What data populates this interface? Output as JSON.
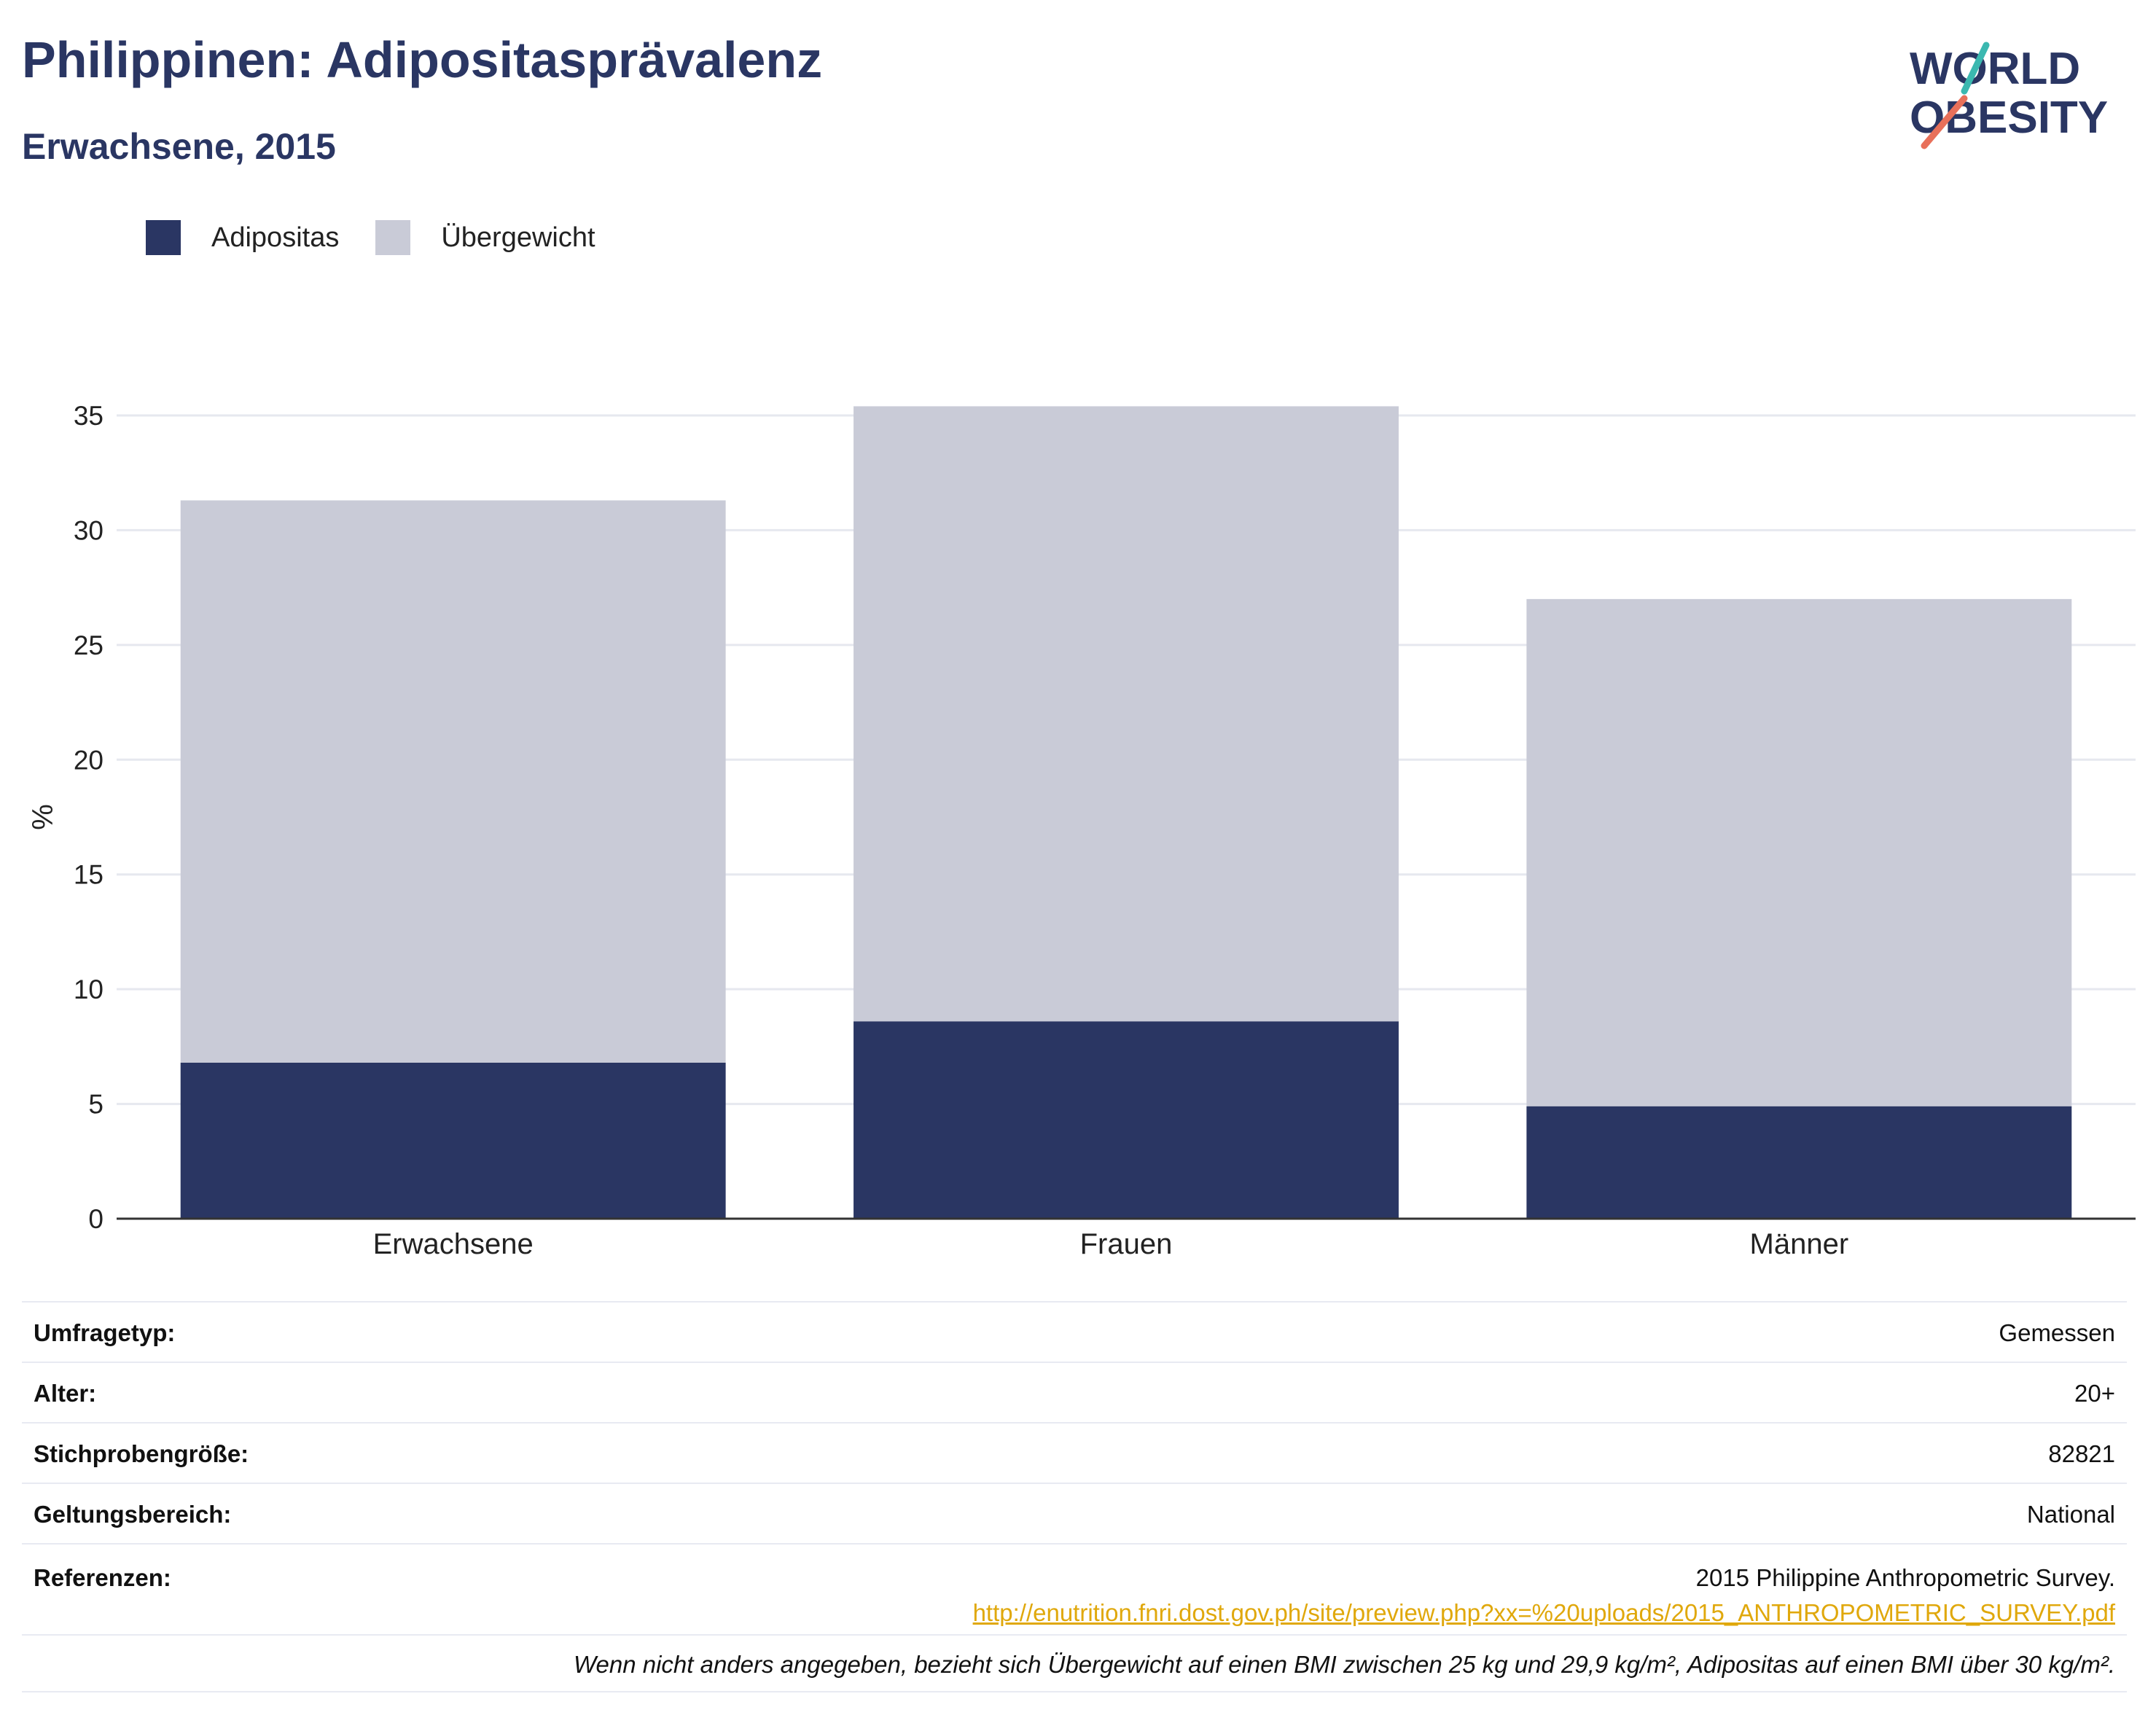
{
  "header": {
    "title": "Philippinen: Adipositasprävalenz",
    "subtitle": "Erwachsene, 2015"
  },
  "logo": {
    "line1": "WORLD",
    "line2": "OBESITY",
    "colors": {
      "text": "#2a3663",
      "slash_top": "#3bb8b0",
      "slash_bottom": "#e8705a"
    }
  },
  "legend": [
    {
      "label": "Adipositas",
      "color": "#2a3663"
    },
    {
      "label": "Übergewicht",
      "color": "#c9cbd7"
    }
  ],
  "chart_data": {
    "type": "bar",
    "stacked": true,
    "categories": [
      "Erwachsene",
      "Frauen",
      "Männer"
    ],
    "series": [
      {
        "name": "Adipositas",
        "values": [
          6.8,
          8.6,
          4.9
        ],
        "color": "#2a3663"
      },
      {
        "name": "Übergewicht",
        "values": [
          24.5,
          26.8,
          22.1
        ],
        "color": "#c9cbd7"
      }
    ],
    "totals": [
      31.3,
      35.4,
      27.0
    ],
    "ylabel": "%",
    "ylim": [
      0,
      35
    ],
    "yticks": [
      0,
      5,
      10,
      15,
      20,
      25,
      30,
      35
    ],
    "grid": true,
    "legend_position": "top-left"
  },
  "info": {
    "rows": [
      {
        "key": "Umfragetyp:",
        "value": "Gemessen"
      },
      {
        "key": "Alter:",
        "value": "20+"
      },
      {
        "key": "Stichprobengröße:",
        "value": "82821"
      },
      {
        "key": "Geltungsbereich:",
        "value": "National"
      }
    ],
    "references": {
      "key": "Referenzen:",
      "text": "2015 Philippine Anthropometric Survey.",
      "url": "http://enutrition.fnri.dost.gov.ph/site/preview.php?xx=%20uploads/2015_ANTHROPOMETRIC_SURVEY.pdf"
    },
    "note": "Wenn nicht anders angegeben, bezieht sich Übergewicht auf einen BMI zwischen 25 kg und 29,9 kg/m², Adipositas auf einen BMI über 30 kg/m²."
  }
}
